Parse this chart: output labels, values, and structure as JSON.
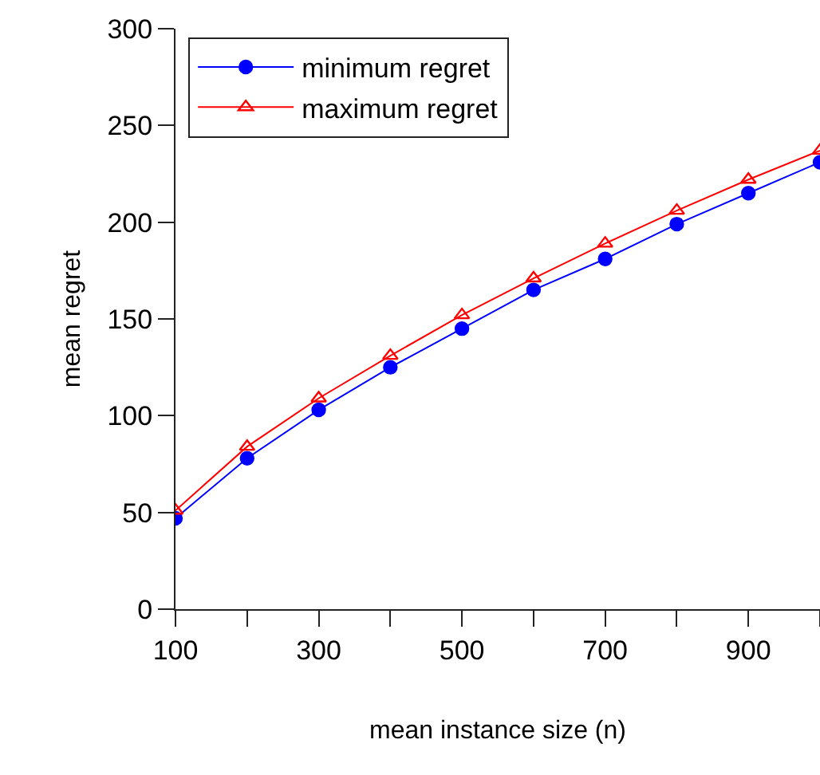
{
  "chart_data": {
    "type": "line",
    "xlabel": "mean instance size (n)",
    "ylabel": "mean regret",
    "x": [
      100,
      200,
      300,
      400,
      500,
      600,
      700,
      800,
      900,
      1000
    ],
    "series": [
      {
        "name": "minimum regret",
        "color": "#0000ff",
        "marker": "circle",
        "values": [
          47,
          78,
          103,
          125,
          145,
          165,
          181,
          199,
          215,
          231
        ]
      },
      {
        "name": "maximum regret",
        "color": "#ff0000",
        "marker": "triangle-open",
        "values": [
          51,
          84,
          109,
          131,
          152,
          171,
          189,
          206,
          222,
          237
        ]
      }
    ],
    "xlim": [
      100,
      1000
    ],
    "ylim": [
      0,
      300
    ],
    "xticks": [
      100,
      {
        "value": 200,
        "label": null
      },
      300,
      {
        "value": 400,
        "label": null
      },
      500,
      {
        "value": 600,
        "label": null
      },
      700,
      {
        "value": 800,
        "label": null
      },
      900,
      {
        "value": 1000,
        "label": null
      }
    ],
    "yticks": [
      0,
      50,
      100,
      150,
      200,
      250,
      300
    ],
    "legend": "top left",
    "line_style": "solid"
  }
}
